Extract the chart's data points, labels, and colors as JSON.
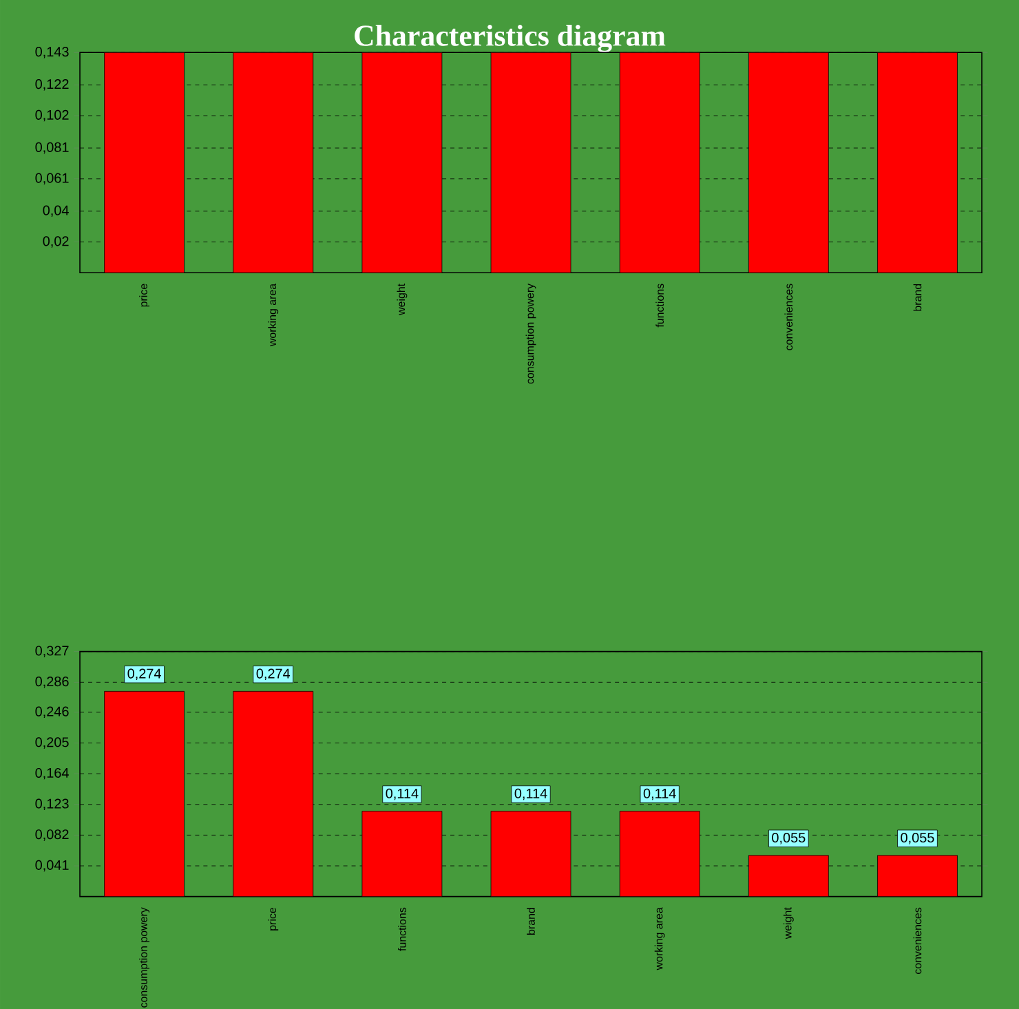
{
  "chart_data": [
    {
      "type": "bar",
      "title": "Characteristics diagram",
      "categories": [
        "price",
        "working area",
        "weight",
        "consumption powery",
        "functions",
        "conveniences",
        "brand"
      ],
      "values": [
        0.143,
        0.143,
        0.143,
        0.143,
        0.143,
        0.143,
        0.143
      ],
      "color": "#ff0000",
      "ylim": [
        0,
        0.143
      ],
      "yticks": [
        {
          "value": 0.02,
          "label": "0,02"
        },
        {
          "value": 0.04,
          "label": "0,04"
        },
        {
          "value": 0.061,
          "label": "0,061"
        },
        {
          "value": 0.081,
          "label": "0,081"
        },
        {
          "value": 0.102,
          "label": "0,102"
        },
        {
          "value": 0.122,
          "label": "0,122"
        },
        {
          "value": 0.143,
          "label": "0,143"
        }
      ],
      "grid": "y"
    },
    {
      "type": "bar",
      "categories": [
        "consumption powery",
        "price",
        "functions",
        "brand",
        "working area",
        "weight",
        "conveniences"
      ],
      "values": [
        0.274,
        0.274,
        0.114,
        0.114,
        0.114,
        0.055,
        0.055
      ],
      "color": "#ff0000",
      "value_labels": [
        "0,274",
        "0,274",
        "0,114",
        "0,114",
        "0,114",
        "0,055",
        "0,055"
      ],
      "ylim": [
        0,
        0.327
      ],
      "yticks": [
        {
          "value": 0.041,
          "label": "0,041"
        },
        {
          "value": 0.082,
          "label": "0,082"
        },
        {
          "value": 0.123,
          "label": "0,123"
        },
        {
          "value": 0.164,
          "label": "0,164"
        },
        {
          "value": 0.205,
          "label": "0,205"
        },
        {
          "value": 0.246,
          "label": "0,246"
        },
        {
          "value": 0.286,
          "label": "0,286"
        },
        {
          "value": 0.327,
          "label": "0,327"
        }
      ],
      "grid": "y"
    }
  ]
}
